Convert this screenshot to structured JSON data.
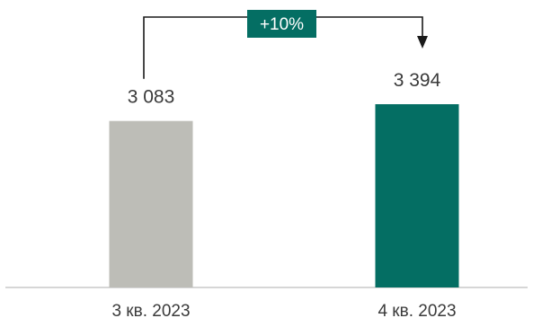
{
  "chart_data": {
    "type": "bar",
    "categories": [
      "3 кв. 2023",
      "4 кв. 2023"
    ],
    "values": [
      3083,
      3394
    ],
    "value_labels": [
      "3 083",
      "3 394"
    ],
    "colors": [
      "#bdbdb7",
      "#046e63"
    ],
    "ylim": [
      0,
      3394
    ],
    "change_label": "+10%",
    "change_color": "#046e63",
    "arrow_color": "#1a1a1a",
    "axis_color": "#c8c8c8"
  }
}
